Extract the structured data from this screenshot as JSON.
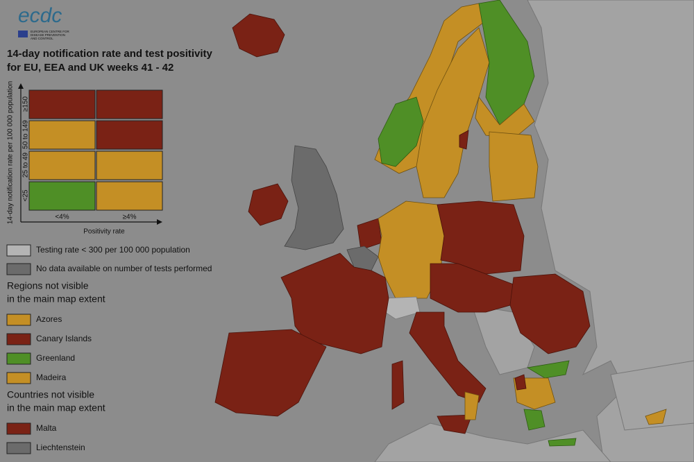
{
  "logo": {
    "name": "ecdc",
    "subtitle": [
      "EUROPEAN CENTRE FOR",
      "DISEASE PREVENTION",
      "AND CONTROL"
    ]
  },
  "title": [
    "14-day notification rate and test positivity",
    "for EU, EEA and UK weeks 41 - 42"
  ],
  "matrix": {
    "y_label": "14-day notification rate per 100 000 population",
    "rows": [
      "≥150",
      "50 to 149",
      "25 to 49",
      "<25"
    ],
    "columns": [
      "<4%",
      "≥4%"
    ],
    "x_label": "Positivity rate",
    "cells": [
      [
        "#7a2215",
        "#7a2215"
      ],
      [
        "#c48f25",
        "#7a2215"
      ],
      [
        "#c48f25",
        "#c48f25"
      ],
      [
        "#4f8f26",
        "#c48f25"
      ]
    ]
  },
  "legend": [
    {
      "label": "Testing rate < 300 per 100 000 population",
      "color": "#b4b4b4"
    },
    {
      "label": "No data available on number of tests performed",
      "color": "#6b6b6b"
    }
  ],
  "sections": [
    {
      "heading": [
        "Regions not visible",
        "in the main map extent"
      ],
      "items": [
        {
          "label": "Azores",
          "color": "#c48f25"
        },
        {
          "label": "Canary Islands",
          "color": "#7a2215"
        },
        {
          "label": "Greenland",
          "color": "#4f8f26"
        },
        {
          "label": "Madeira",
          "color": "#c48f25"
        }
      ]
    },
    {
      "heading": [
        "Countries not visible",
        "in the main map extent"
      ],
      "items": [
        {
          "label": "Malta",
          "color": "#7a2215"
        },
        {
          "label": "Liechtenstein",
          "color": "#6b6b6b"
        }
      ]
    }
  ]
}
